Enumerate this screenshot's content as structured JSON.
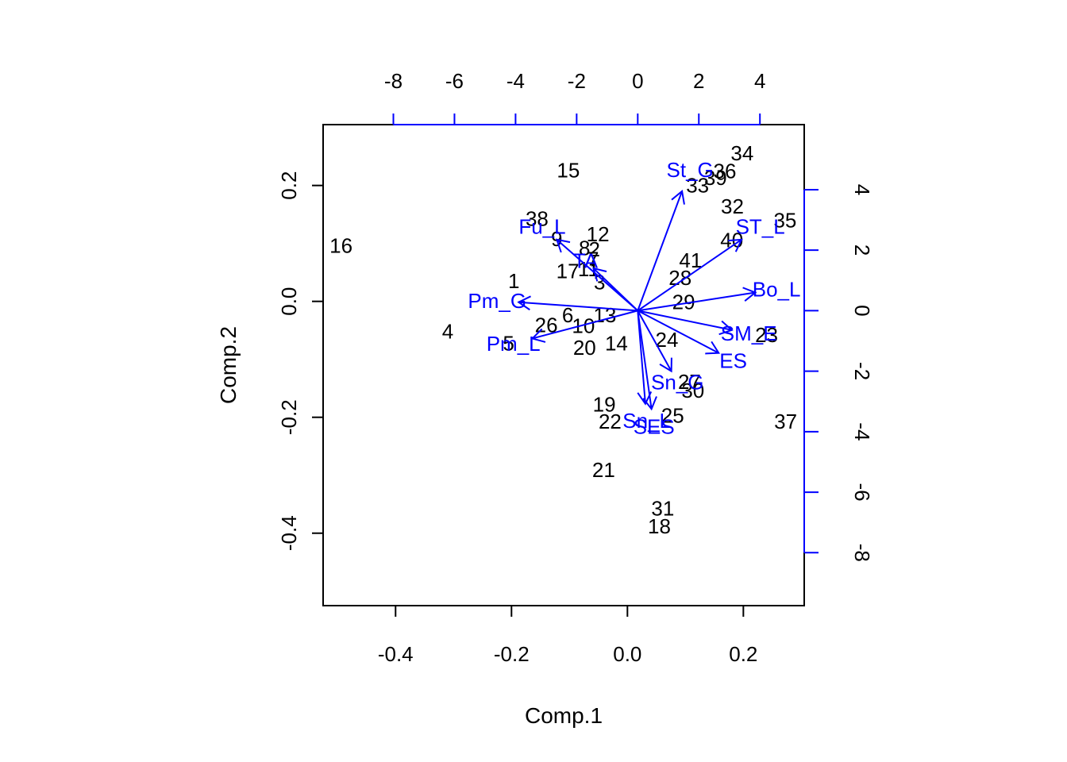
{
  "chart_data": {
    "type": "scatter",
    "subtype": "biplot",
    "title": "",
    "xlabel": "Comp.1",
    "ylabel": "Comp.2",
    "xlim": [
      -0.525,
      0.305
    ],
    "ylim": [
      -0.525,
      0.305
    ],
    "xticks": [
      -0.4,
      -0.2,
      0.0,
      0.2
    ],
    "xtick_labels": [
      "-0.4",
      "-0.2",
      "0.0",
      "0.2"
    ],
    "yticks": [
      -0.4,
      -0.2,
      0.0,
      0.2
    ],
    "ytick_labels": [
      "-0.4",
      "-0.2",
      "0.0",
      "0.2"
    ],
    "secondary_xlim": [
      -10.3,
      5.45
    ],
    "secondary_ylim": [
      -9.75,
      6.15
    ],
    "secondary_xticks": [
      -8,
      -6,
      -4,
      -2,
      0,
      2,
      4
    ],
    "secondary_xtick_labels": [
      "-8",
      "-6",
      "-4",
      "-2",
      "0",
      "2",
      "4"
    ],
    "secondary_yticks": [
      -8,
      -6,
      -4,
      -2,
      0,
      2,
      4
    ],
    "secondary_ytick_labels": [
      "-8",
      "-6",
      "-4",
      "-2",
      "0",
      "2",
      "4"
    ],
    "grid": false,
    "legend": "none",
    "colors": {
      "observations": "#000000",
      "loadings": "#0000ff",
      "frame": "#000000"
    },
    "observations": [
      {
        "label": "1",
        "x": -0.196,
        "y": 0.035
      },
      {
        "label": "2",
        "x": -0.057,
        "y": 0.09
      },
      {
        "label": "3",
        "x": -0.048,
        "y": 0.033
      },
      {
        "label": "4",
        "x": -0.31,
        "y": -0.052
      },
      {
        "label": "5",
        "x": -0.205,
        "y": -0.072
      },
      {
        "label": "6",
        "x": -0.103,
        "y": -0.024
      },
      {
        "label": "7",
        "x": -0.059,
        "y": 0.073
      },
      {
        "label": "8",
        "x": -0.074,
        "y": 0.092
      },
      {
        "label": "9",
        "x": -0.122,
        "y": 0.108
      },
      {
        "label": "10",
        "x": -0.076,
        "y": -0.042
      },
      {
        "label": "11",
        "x": -0.067,
        "y": 0.056
      },
      {
        "label": "12",
        "x": -0.051,
        "y": 0.116
      },
      {
        "label": "13",
        "x": -0.039,
        "y": -0.024
      },
      {
        "label": "14",
        "x": -0.019,
        "y": -0.072
      },
      {
        "label": "15",
        "x": -0.102,
        "y": 0.226
      },
      {
        "label": "16",
        "x": -0.494,
        "y": 0.096
      },
      {
        "label": "17",
        "x": -0.103,
        "y": 0.052
      },
      {
        "label": "18",
        "x": 0.055,
        "y": -0.388
      },
      {
        "label": "19",
        "x": -0.04,
        "y": -0.178
      },
      {
        "label": "20",
        "x": -0.074,
        "y": -0.08
      },
      {
        "label": "21",
        "x": -0.041,
        "y": -0.291
      },
      {
        "label": "22",
        "x": -0.03,
        "y": -0.207
      },
      {
        "label": "23",
        "x": 0.24,
        "y": -0.058
      },
      {
        "label": "24",
        "x": 0.068,
        "y": -0.066
      },
      {
        "label": "25",
        "x": 0.078,
        "y": -0.197
      },
      {
        "label": "26",
        "x": -0.14,
        "y": -0.041
      },
      {
        "label": "27",
        "x": 0.107,
        "y": -0.139
      },
      {
        "label": "28",
        "x": 0.091,
        "y": 0.041
      },
      {
        "label": "29",
        "x": 0.097,
        "y": -0.001
      },
      {
        "label": "30",
        "x": 0.113,
        "y": -0.154
      },
      {
        "label": "31",
        "x": 0.061,
        "y": -0.357
      },
      {
        "label": "32",
        "x": 0.181,
        "y": 0.164
      },
      {
        "label": "33",
        "x": 0.121,
        "y": 0.2
      },
      {
        "label": "34",
        "x": 0.198,
        "y": 0.256
      },
      {
        "label": "35",
        "x": 0.272,
        "y": 0.14
      },
      {
        "label": "36",
        "x": 0.168,
        "y": 0.225
      },
      {
        "label": "37",
        "x": 0.273,
        "y": -0.207
      },
      {
        "label": "38",
        "x": -0.156,
        "y": 0.143
      },
      {
        "label": "39",
        "x": 0.152,
        "y": 0.213
      },
      {
        "label": "40",
        "x": 0.18,
        "y": 0.106
      },
      {
        "label": "41",
        "x": 0.109,
        "y": 0.071
      }
    ],
    "loadings": [
      {
        "label": "St_G",
        "x": 1.45,
        "y": 3.95
      },
      {
        "label": "ST_L",
        "x": 3.4,
        "y": 2.35
      },
      {
        "label": "Bo_L",
        "x": 3.85,
        "y": 0.6
      },
      {
        "label": "SM_E",
        "x": 3.08,
        "y": -0.64
      },
      {
        "label": "ES",
        "x": 2.65,
        "y": -1.4
      },
      {
        "label": "Sn_G",
        "x": 1.1,
        "y": -2.0
      },
      {
        "label": "SES",
        "x": 0.45,
        "y": -3.25
      },
      {
        "label": "Sn_L",
        "x": 0.25,
        "y": -3.08
      },
      {
        "label": "Pm_G",
        "x": -3.9,
        "y": 0.28
      },
      {
        "label": "Pm_L",
        "x": -3.45,
        "y": -0.92
      },
      {
        "label": "Fu_L",
        "x": -2.65,
        "y": 2.35
      },
      {
        "label": "TA",
        "x": -1.45,
        "y": 1.4
      }
    ]
  }
}
